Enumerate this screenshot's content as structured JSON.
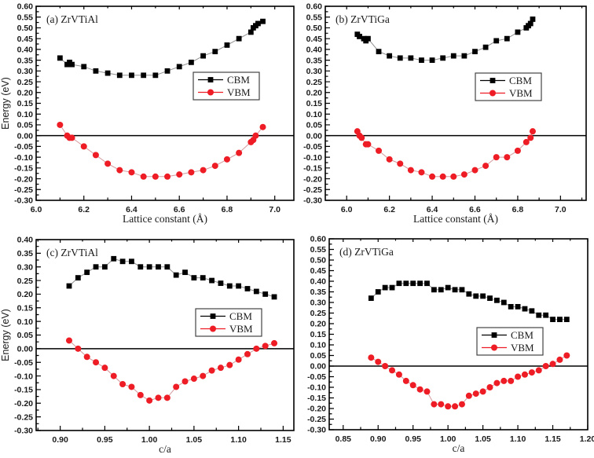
{
  "figure": {
    "background": "#ffffff",
    "axis_color": "#000000",
    "tick_label_color": "#1a1a1a"
  },
  "chart_data": [
    {
      "id": "a",
      "type": "line",
      "panel_label": "(a) ZrVTiAl",
      "xlabel": "Lattice constant (Å)",
      "ylabel": "Energy (eV)",
      "xlim": [
        6.0,
        7.08
      ],
      "ylim": [
        -0.3,
        0.6
      ],
      "xticks": [
        6.0,
        6.2,
        6.4,
        6.6,
        6.8,
        7.0
      ],
      "xtick_decimals": 1,
      "ytick_step": 0.05,
      "ytick_decimals": 2,
      "zero_line": true,
      "grid": false,
      "legend_position": "center-right",
      "series": [
        {
          "name": "CBM",
          "marker": "square",
          "marker_color": "#000000",
          "line_color": "#8f8f8f",
          "points": [
            [
              6.1,
              0.36
            ],
            [
              6.13,
              0.33
            ],
            [
              6.14,
              0.34
            ],
            [
              6.15,
              0.33
            ],
            [
              6.2,
              0.32
            ],
            [
              6.25,
              0.3
            ],
            [
              6.3,
              0.29
            ],
            [
              6.35,
              0.28
            ],
            [
              6.4,
              0.28
            ],
            [
              6.45,
              0.28
            ],
            [
              6.5,
              0.28
            ],
            [
              6.55,
              0.3
            ],
            [
              6.6,
              0.32
            ],
            [
              6.65,
              0.34
            ],
            [
              6.7,
              0.37
            ],
            [
              6.75,
              0.39
            ],
            [
              6.8,
              0.42
            ],
            [
              6.85,
              0.45
            ],
            [
              6.9,
              0.48
            ],
            [
              6.91,
              0.5
            ],
            [
              6.92,
              0.51
            ],
            [
              6.93,
              0.52
            ],
            [
              6.95,
              0.53
            ]
          ]
        },
        {
          "name": "VBM",
          "marker": "circle",
          "marker_color": "#ee1c25",
          "line_color": "#d49a9d",
          "points": [
            [
              6.1,
              0.05
            ],
            [
              6.13,
              0.0
            ],
            [
              6.14,
              -0.01
            ],
            [
              6.15,
              -0.01
            ],
            [
              6.2,
              -0.05
            ],
            [
              6.25,
              -0.09
            ],
            [
              6.3,
              -0.13
            ],
            [
              6.35,
              -0.16
            ],
            [
              6.4,
              -0.17
            ],
            [
              6.45,
              -0.19
            ],
            [
              6.5,
              -0.19
            ],
            [
              6.55,
              -0.19
            ],
            [
              6.6,
              -0.18
            ],
            [
              6.65,
              -0.17
            ],
            [
              6.7,
              -0.16
            ],
            [
              6.75,
              -0.14
            ],
            [
              6.8,
              -0.11
            ],
            [
              6.85,
              -0.08
            ],
            [
              6.9,
              -0.03
            ],
            [
              6.91,
              -0.02
            ],
            [
              6.92,
              0.0
            ],
            [
              6.95,
              0.04
            ]
          ]
        }
      ]
    },
    {
      "id": "b",
      "type": "line",
      "panel_label": "(b) ZrVTiGa",
      "xlabel": "Lattice constant (Å)",
      "ylabel": "",
      "xlim": [
        5.9,
        7.12
      ],
      "ylim": [
        -0.3,
        0.6
      ],
      "xticks": [
        6.0,
        6.2,
        6.4,
        6.6,
        6.8,
        7.0
      ],
      "xtick_decimals": 1,
      "ytick_step": 0.05,
      "ytick_decimals": 2,
      "zero_line": true,
      "grid": false,
      "legend_position": "center-right",
      "series": [
        {
          "name": "CBM",
          "marker": "square",
          "marker_color": "#000000",
          "line_color": "#8f8f8f",
          "points": [
            [
              6.05,
              0.47
            ],
            [
              6.06,
              0.46
            ],
            [
              6.08,
              0.45
            ],
            [
              6.09,
              0.44
            ],
            [
              6.1,
              0.45
            ],
            [
              6.15,
              0.39
            ],
            [
              6.2,
              0.37
            ],
            [
              6.25,
              0.36
            ],
            [
              6.3,
              0.36
            ],
            [
              6.35,
              0.35
            ],
            [
              6.4,
              0.35
            ],
            [
              6.45,
              0.36
            ],
            [
              6.5,
              0.37
            ],
            [
              6.55,
              0.37
            ],
            [
              6.6,
              0.39
            ],
            [
              6.65,
              0.41
            ],
            [
              6.7,
              0.44
            ],
            [
              6.75,
              0.45
            ],
            [
              6.8,
              0.48
            ],
            [
              6.84,
              0.5
            ],
            [
              6.85,
              0.51
            ],
            [
              6.86,
              0.52
            ],
            [
              6.87,
              0.54
            ]
          ]
        },
        {
          "name": "VBM",
          "marker": "circle",
          "marker_color": "#ee1c25",
          "line_color": "#d49a9d",
          "points": [
            [
              6.05,
              0.02
            ],
            [
              6.06,
              0.0
            ],
            [
              6.07,
              -0.01
            ],
            [
              6.09,
              -0.04
            ],
            [
              6.1,
              -0.04
            ],
            [
              6.15,
              -0.07
            ],
            [
              6.2,
              -0.11
            ],
            [
              6.25,
              -0.13
            ],
            [
              6.3,
              -0.16
            ],
            [
              6.35,
              -0.17
            ],
            [
              6.4,
              -0.19
            ],
            [
              6.45,
              -0.19
            ],
            [
              6.5,
              -0.19
            ],
            [
              6.55,
              -0.18
            ],
            [
              6.6,
              -0.16
            ],
            [
              6.65,
              -0.14
            ],
            [
              6.7,
              -0.1
            ],
            [
              6.75,
              -0.1
            ],
            [
              6.8,
              -0.07
            ],
            [
              6.84,
              -0.03
            ],
            [
              6.86,
              -0.01
            ],
            [
              6.87,
              0.02
            ]
          ]
        }
      ]
    },
    {
      "id": "c",
      "type": "line",
      "panel_label": "(c) ZrVTiAl",
      "xlabel": "c/a",
      "ylabel": "Energy (eV)",
      "xlim": [
        0.873,
        1.162
      ],
      "ylim": [
        -0.3,
        0.4
      ],
      "xticks": [
        0.9,
        0.95,
        1.0,
        1.05,
        1.1,
        1.15
      ],
      "xtick_decimals": 2,
      "ytick_step": 0.05,
      "ytick_decimals": 2,
      "zero_line": true,
      "grid": false,
      "legend_position": "center-right",
      "series": [
        {
          "name": "CBM",
          "marker": "square",
          "marker_color": "#000000",
          "line_color": "#8f8f8f",
          "points": [
            [
              0.91,
              0.23
            ],
            [
              0.92,
              0.26
            ],
            [
              0.93,
              0.28
            ],
            [
              0.94,
              0.3
            ],
            [
              0.95,
              0.3
            ],
            [
              0.96,
              0.33
            ],
            [
              0.97,
              0.32
            ],
            [
              0.98,
              0.32
            ],
            [
              0.99,
              0.3
            ],
            [
              1.0,
              0.3
            ],
            [
              1.01,
              0.3
            ],
            [
              1.02,
              0.3
            ],
            [
              1.03,
              0.27
            ],
            [
              1.04,
              0.28
            ],
            [
              1.05,
              0.26
            ],
            [
              1.06,
              0.26
            ],
            [
              1.07,
              0.25
            ],
            [
              1.08,
              0.24
            ],
            [
              1.09,
              0.23
            ],
            [
              1.1,
              0.23
            ],
            [
              1.11,
              0.22
            ],
            [
              1.12,
              0.21
            ],
            [
              1.13,
              0.2
            ],
            [
              1.14,
              0.19
            ]
          ]
        },
        {
          "name": "VBM",
          "marker": "circle",
          "marker_color": "#ee1c25",
          "line_color": "#d49a9d",
          "points": [
            [
              0.91,
              0.03
            ],
            [
              0.92,
              0.0
            ],
            [
              0.93,
              -0.03
            ],
            [
              0.94,
              -0.05
            ],
            [
              0.95,
              -0.07
            ],
            [
              0.96,
              -0.1
            ],
            [
              0.97,
              -0.13
            ],
            [
              0.98,
              -0.14
            ],
            [
              0.99,
              -0.17
            ],
            [
              1.0,
              -0.19
            ],
            [
              1.01,
              -0.18
            ],
            [
              1.02,
              -0.18
            ],
            [
              1.03,
              -0.14
            ],
            [
              1.04,
              -0.12
            ],
            [
              1.05,
              -0.11
            ],
            [
              1.06,
              -0.1
            ],
            [
              1.07,
              -0.08
            ],
            [
              1.08,
              -0.07
            ],
            [
              1.09,
              -0.06
            ],
            [
              1.1,
              -0.04
            ],
            [
              1.11,
              -0.02
            ],
            [
              1.12,
              0.0
            ],
            [
              1.13,
              0.01
            ],
            [
              1.14,
              0.02
            ]
          ]
        }
      ]
    },
    {
      "id": "d",
      "type": "line",
      "panel_label": "(d) ZrVTiGa",
      "xlabel": "c/a",
      "ylabel": "",
      "xlim": [
        0.83,
        1.2
      ],
      "ylim": [
        -0.3,
        0.6
      ],
      "xticks": [
        0.85,
        0.9,
        0.95,
        1.0,
        1.05,
        1.1,
        1.15,
        1.2
      ],
      "xtick_decimals": 2,
      "ytick_step": 0.05,
      "ytick_decimals": 2,
      "zero_line": true,
      "grid": false,
      "legend_position": "center-right",
      "series": [
        {
          "name": "CBM",
          "marker": "square",
          "marker_color": "#000000",
          "line_color": "#8f8f8f",
          "points": [
            [
              0.89,
              0.32
            ],
            [
              0.9,
              0.35
            ],
            [
              0.91,
              0.37
            ],
            [
              0.92,
              0.37
            ],
            [
              0.93,
              0.39
            ],
            [
              0.94,
              0.39
            ],
            [
              0.95,
              0.39
            ],
            [
              0.96,
              0.39
            ],
            [
              0.97,
              0.39
            ],
            [
              0.98,
              0.36
            ],
            [
              0.99,
              0.36
            ],
            [
              1.0,
              0.37
            ],
            [
              1.01,
              0.36
            ],
            [
              1.02,
              0.36
            ],
            [
              1.03,
              0.34
            ],
            [
              1.04,
              0.33
            ],
            [
              1.05,
              0.33
            ],
            [
              1.06,
              0.32
            ],
            [
              1.07,
              0.31
            ],
            [
              1.08,
              0.3
            ],
            [
              1.09,
              0.28
            ],
            [
              1.1,
              0.28
            ],
            [
              1.11,
              0.27
            ],
            [
              1.12,
              0.26
            ],
            [
              1.13,
              0.24
            ],
            [
              1.14,
              0.24
            ],
            [
              1.15,
              0.22
            ],
            [
              1.16,
              0.22
            ],
            [
              1.17,
              0.22
            ]
          ]
        },
        {
          "name": "VBM",
          "marker": "circle",
          "marker_color": "#ee1c25",
          "line_color": "#d49a9d",
          "points": [
            [
              0.89,
              0.04
            ],
            [
              0.9,
              0.02
            ],
            [
              0.91,
              0.0
            ],
            [
              0.92,
              -0.02
            ],
            [
              0.93,
              -0.04
            ],
            [
              0.94,
              -0.07
            ],
            [
              0.95,
              -0.09
            ],
            [
              0.96,
              -0.11
            ],
            [
              0.97,
              -0.12
            ],
            [
              0.98,
              -0.18
            ],
            [
              0.99,
              -0.18
            ],
            [
              1.0,
              -0.19
            ],
            [
              1.01,
              -0.19
            ],
            [
              1.02,
              -0.18
            ],
            [
              1.03,
              -0.14
            ],
            [
              1.04,
              -0.13
            ],
            [
              1.05,
              -0.12
            ],
            [
              1.06,
              -0.1
            ],
            [
              1.07,
              -0.08
            ],
            [
              1.08,
              -0.07
            ],
            [
              1.09,
              -0.07
            ],
            [
              1.1,
              -0.05
            ],
            [
              1.11,
              -0.04
            ],
            [
              1.12,
              -0.03
            ],
            [
              1.13,
              -0.02
            ],
            [
              1.14,
              0.0
            ],
            [
              1.15,
              0.01
            ],
            [
              1.16,
              0.03
            ],
            [
              1.17,
              0.05
            ]
          ]
        }
      ]
    }
  ]
}
